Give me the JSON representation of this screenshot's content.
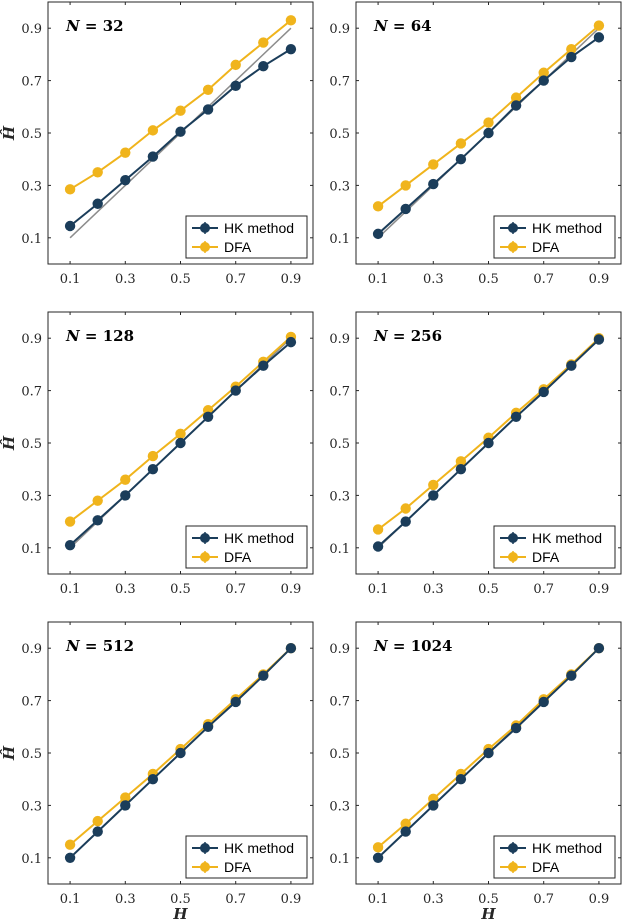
{
  "figure": {
    "ylabel": "Ĥ",
    "xlabel": "H",
    "legend": [
      "HK method",
      "DFA"
    ],
    "colors": {
      "hk": "#1b3d5a",
      "dfa": "#f0b41c",
      "ref": "#8c8c8c",
      "axis": "#262626"
    }
  },
  "chart_data": [
    {
      "type": "line",
      "title": "N = 32",
      "title_label": "N =",
      "title_value": "32",
      "x": [
        0.1,
        0.2,
        0.3,
        0.4,
        0.5,
        0.6,
        0.7,
        0.8,
        0.9
      ],
      "xticks": [
        0.1,
        0.3,
        0.5,
        0.7,
        0.9
      ],
      "yticks": [
        0.1,
        0.3,
        0.5,
        0.7,
        0.9
      ],
      "xlim": [
        0.02,
        0.98
      ],
      "ylim": [
        0.0,
        1.0
      ],
      "reference_line": {
        "x": [
          0.1,
          0.9
        ],
        "y": [
          0.1,
          0.9
        ]
      },
      "series": [
        {
          "name": "HK method",
          "values": [
            0.145,
            0.23,
            0.32,
            0.41,
            0.505,
            0.59,
            0.68,
            0.755,
            0.82
          ]
        },
        {
          "name": "DFA",
          "values": [
            0.285,
            0.35,
            0.425,
            0.51,
            0.585,
            0.665,
            0.76,
            0.845,
            0.93
          ]
        }
      ],
      "legend_position": "bottom-right"
    },
    {
      "type": "line",
      "title": "N = 64",
      "title_label": "N =",
      "title_value": "64",
      "x": [
        0.1,
        0.2,
        0.3,
        0.4,
        0.5,
        0.6,
        0.7,
        0.8,
        0.9
      ],
      "xticks": [
        0.1,
        0.3,
        0.5,
        0.7,
        0.9
      ],
      "yticks": [
        0.1,
        0.3,
        0.5,
        0.7,
        0.9
      ],
      "xlim": [
        0.02,
        0.98
      ],
      "ylim": [
        0.0,
        1.0
      ],
      "reference_line": {
        "x": [
          0.1,
          0.9
        ],
        "y": [
          0.1,
          0.9
        ]
      },
      "series": [
        {
          "name": "HK method",
          "values": [
            0.115,
            0.21,
            0.305,
            0.4,
            0.5,
            0.605,
            0.7,
            0.79,
            0.865
          ]
        },
        {
          "name": "DFA",
          "values": [
            0.22,
            0.3,
            0.38,
            0.46,
            0.54,
            0.635,
            0.73,
            0.82,
            0.91
          ]
        }
      ],
      "legend_position": "bottom-right"
    },
    {
      "type": "line",
      "title": "N = 128",
      "title_label": "N =",
      "title_value": "128",
      "x": [
        0.1,
        0.2,
        0.3,
        0.4,
        0.5,
        0.6,
        0.7,
        0.8,
        0.9
      ],
      "xticks": [
        0.1,
        0.3,
        0.5,
        0.7,
        0.9
      ],
      "yticks": [
        0.1,
        0.3,
        0.5,
        0.7,
        0.9
      ],
      "xlim": [
        0.02,
        0.98
      ],
      "ylim": [
        0.0,
        1.0
      ],
      "reference_line": {
        "x": [
          0.1,
          0.9
        ],
        "y": [
          0.1,
          0.9
        ]
      },
      "series": [
        {
          "name": "HK method",
          "values": [
            0.11,
            0.205,
            0.3,
            0.4,
            0.5,
            0.6,
            0.7,
            0.795,
            0.885
          ]
        },
        {
          "name": "DFA",
          "values": [
            0.2,
            0.28,
            0.36,
            0.45,
            0.535,
            0.625,
            0.715,
            0.81,
            0.905
          ]
        }
      ],
      "legend_position": "bottom-right"
    },
    {
      "type": "line",
      "title": "N = 256",
      "title_label": "N =",
      "title_value": "256",
      "x": [
        0.1,
        0.2,
        0.3,
        0.4,
        0.5,
        0.6,
        0.7,
        0.8,
        0.9
      ],
      "xticks": [
        0.1,
        0.3,
        0.5,
        0.7,
        0.9
      ],
      "yticks": [
        0.1,
        0.3,
        0.5,
        0.7,
        0.9
      ],
      "xlim": [
        0.02,
        0.98
      ],
      "ylim": [
        0.0,
        1.0
      ],
      "reference_line": {
        "x": [
          0.1,
          0.9
        ],
        "y": [
          0.1,
          0.9
        ]
      },
      "series": [
        {
          "name": "HK method",
          "values": [
            0.105,
            0.2,
            0.3,
            0.4,
            0.5,
            0.6,
            0.695,
            0.795,
            0.895
          ]
        },
        {
          "name": "DFA",
          "values": [
            0.17,
            0.25,
            0.34,
            0.43,
            0.52,
            0.615,
            0.705,
            0.8,
            0.9
          ]
        }
      ],
      "legend_position": "bottom-right"
    },
    {
      "type": "line",
      "title": "N = 512",
      "title_label": "N =",
      "title_value": "512",
      "x": [
        0.1,
        0.2,
        0.3,
        0.4,
        0.5,
        0.6,
        0.7,
        0.8,
        0.9
      ],
      "xticks": [
        0.1,
        0.3,
        0.5,
        0.7,
        0.9
      ],
      "yticks": [
        0.1,
        0.3,
        0.5,
        0.7,
        0.9
      ],
      "xlim": [
        0.02,
        0.98
      ],
      "ylim": [
        0.0,
        1.0
      ],
      "reference_line": {
        "x": [
          0.1,
          0.9
        ],
        "y": [
          0.1,
          0.9
        ]
      },
      "series": [
        {
          "name": "HK method",
          "values": [
            0.1,
            0.2,
            0.3,
            0.4,
            0.5,
            0.6,
            0.695,
            0.795,
            0.9
          ]
        },
        {
          "name": "DFA",
          "values": [
            0.15,
            0.24,
            0.33,
            0.42,
            0.515,
            0.61,
            0.705,
            0.8,
            0.9
          ]
        }
      ],
      "legend_position": "bottom-right"
    },
    {
      "type": "line",
      "title": "N = 1024",
      "title_label": "N =",
      "title_value": "1024",
      "x": [
        0.1,
        0.2,
        0.3,
        0.4,
        0.5,
        0.6,
        0.7,
        0.8,
        0.9
      ],
      "xticks": [
        0.1,
        0.3,
        0.5,
        0.7,
        0.9
      ],
      "yticks": [
        0.1,
        0.3,
        0.5,
        0.7,
        0.9
      ],
      "xlim": [
        0.02,
        0.98
      ],
      "ylim": [
        0.0,
        1.0
      ],
      "reference_line": {
        "x": [
          0.1,
          0.9
        ],
        "y": [
          0.1,
          0.9
        ]
      },
      "series": [
        {
          "name": "HK method",
          "values": [
            0.1,
            0.2,
            0.3,
            0.4,
            0.5,
            0.595,
            0.695,
            0.795,
            0.9
          ]
        },
        {
          "name": "DFA",
          "values": [
            0.14,
            0.23,
            0.325,
            0.42,
            0.515,
            0.605,
            0.705,
            0.8,
            0.9
          ]
        }
      ],
      "legend_position": "bottom-right"
    }
  ]
}
